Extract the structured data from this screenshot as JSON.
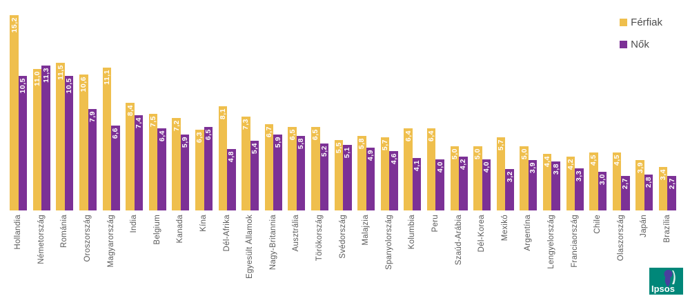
{
  "legend": {
    "items": [
      {
        "label": "Férfiak",
        "color": "#EFBF4D"
      },
      {
        "label": "Nők",
        "color": "#7C3196"
      }
    ]
  },
  "logo": {
    "text": "Ipsos",
    "bg_color": "#008779",
    "figure_color": "#4A3E9E"
  },
  "colors": {
    "ferfiak_bar": "#EFBF4D",
    "nok_bar": "#7C3196",
    "value_label": "#ffffff",
    "axis_label": "#595959"
  },
  "chart_data": {
    "type": "bar",
    "orientation": "vertical-grouped",
    "title": "",
    "xlabel": "",
    "ylabel": "",
    "axes_visible": false,
    "grid": false,
    "legend_position": "top-right",
    "value_label_decimal": "comma",
    "ylim": [
      0,
      15.2
    ],
    "categories": [
      "Hollandia",
      "Németország",
      "Románia",
      "Oroszország",
      "Magyarország",
      "India",
      "Belgium",
      "Kanada",
      "Kína",
      "Dél-Afrika",
      "Egyesült Államok",
      "Nagy-Britannia",
      "Ausztrália",
      "Törökország",
      "Svédország",
      "Malajzia",
      "Spanyolország",
      "Kolumbia",
      "Peru",
      "Szaúd-Arábia",
      "Dél-Korea",
      "Mexikó",
      "Argentína",
      "Lengyelország",
      "Franciaország",
      "Chile",
      "Olaszország",
      "Japán",
      "Brazília"
    ],
    "series": [
      {
        "name": "Férfiak",
        "color": "#EFBF4D",
        "values": [
          15.2,
          11.0,
          11.5,
          10.6,
          11.1,
          8.4,
          7.5,
          7.2,
          6.3,
          8.1,
          7.3,
          6.7,
          6.5,
          6.5,
          5.5,
          5.8,
          5.7,
          6.4,
          6.4,
          5.0,
          5.0,
          5.7,
          5.0,
          4.4,
          4.2,
          4.5,
          4.5,
          3.9,
          3.4
        ]
      },
      {
        "name": "Nők",
        "color": "#7C3196",
        "values": [
          10.5,
          11.3,
          10.5,
          7.9,
          6.6,
          7.4,
          6.4,
          5.9,
          6.5,
          4.8,
          5.4,
          5.9,
          5.8,
          5.2,
          5.1,
          4.9,
          4.6,
          4.1,
          4.0,
          4.2,
          4.0,
          3.2,
          3.9,
          3.8,
          3.3,
          3.0,
          2.7,
          2.8,
          2.7
        ]
      }
    ]
  }
}
